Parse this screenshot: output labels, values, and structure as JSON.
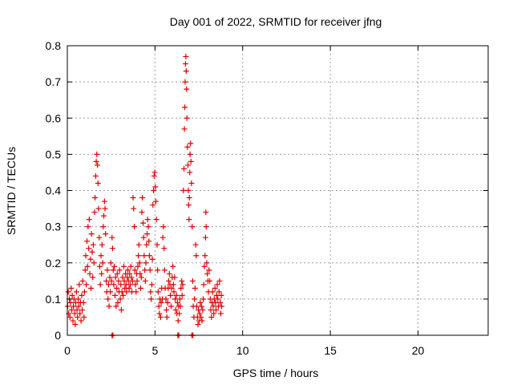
{
  "chart_data": {
    "type": "scatter",
    "title": "Day 001 of 2022, SRMTID for receiver jfng",
    "xlabel": "GPS time / hours",
    "ylabel": "SRMTID / TECUs",
    "xlim": [
      0,
      24
    ],
    "ylim": [
      0,
      0.8
    ],
    "xticks": [
      0,
      5,
      10,
      15,
      20
    ],
    "yticks": [
      0,
      0.1,
      0.2,
      0.3,
      0.4,
      0.5,
      0.6,
      0.7,
      0.8
    ],
    "xtick_labels": [
      "0",
      "5",
      "10",
      "15",
      "20"
    ],
    "ytick_labels": [
      "0",
      "0.1",
      "0.2",
      "0.3",
      "0.4",
      "0.5",
      "0.6",
      "0.7",
      "0.8"
    ],
    "grid": true,
    "marker": "+",
    "series": [
      {
        "name": "SRMTID",
        "color": "#e00000",
        "points": [
          [
            0.02,
            0.08
          ],
          [
            0.05,
            0.12
          ],
          [
            0.08,
            0.06
          ],
          [
            0.12,
            0.1
          ],
          [
            0.15,
            0.05
          ],
          [
            0.18,
            0.09
          ],
          [
            0.22,
            0.13
          ],
          [
            0.25,
            0.07
          ],
          [
            0.28,
            0.11
          ],
          [
            0.32,
            0.04
          ],
          [
            0.35,
            0.08
          ],
          [
            0.38,
            0.1
          ],
          [
            0.42,
            0.06
          ],
          [
            0.45,
            0.03
          ],
          [
            0.48,
            0.09
          ],
          [
            0.52,
            0.12
          ],
          [
            0.55,
            0.07
          ],
          [
            0.58,
            0.05
          ],
          [
            0.62,
            0.1
          ],
          [
            0.65,
            0.08
          ],
          [
            0.68,
            0.14
          ],
          [
            0.72,
            0.06
          ],
          [
            0.75,
            0.09
          ],
          [
            0.78,
            0.04
          ],
          [
            0.82,
            0.11
          ],
          [
            0.85,
            0.07
          ],
          [
            0.88,
            0.15
          ],
          [
            0.92,
            0.09
          ],
          [
            0.95,
            0.05
          ],
          [
            0.98,
            0.12
          ],
          [
            1.02,
            0.18
          ],
          [
            1.05,
            0.22
          ],
          [
            1.08,
            0.14
          ],
          [
            1.12,
            0.26
          ],
          [
            1.15,
            0.19
          ],
          [
            1.18,
            0.3
          ],
          [
            1.22,
            0.24
          ],
          [
            1.25,
            0.32
          ],
          [
            1.28,
            0.17
          ],
          [
            1.32,
            0.21
          ],
          [
            1.35,
            0.13
          ],
          [
            1.38,
            0.28
          ],
          [
            1.42,
            0.23
          ],
          [
            1.45,
            0.16
          ],
          [
            1.48,
            0.25
          ],
          [
            1.52,
            0.2
          ],
          [
            1.55,
            0.34
          ],
          [
            1.58,
            0.38
          ],
          [
            1.62,
            0.44
          ],
          [
            1.65,
            0.48
          ],
          [
            1.68,
            0.5
          ],
          [
            1.72,
            0.47
          ],
          [
            1.75,
            0.42
          ],
          [
            1.78,
            0.35
          ],
          [
            1.82,
            0.27
          ],
          [
            1.85,
            0.19
          ],
          [
            1.88,
            0.14
          ],
          [
            1.92,
            0.22
          ],
          [
            1.95,
            0.17
          ],
          [
            1.98,
            0.25
          ],
          [
            2.02,
            0.2
          ],
          [
            2.05,
            0.3
          ],
          [
            2.08,
            0.33
          ],
          [
            2.12,
            0.37
          ],
          [
            2.15,
            0.35
          ],
          [
            2.18,
            0.28
          ],
          [
            2.22,
            0.15
          ],
          [
            2.25,
            0.12
          ],
          [
            2.28,
            0.18
          ],
          [
            2.32,
            0.1
          ],
          [
            2.35,
            0.14
          ],
          [
            2.38,
            0.08
          ],
          [
            2.42,
            0.16
          ],
          [
            2.45,
            0.12
          ],
          [
            2.48,
            0.2
          ],
          [
            2.52,
            0.15
          ],
          [
            2.55,
            0.27
          ],
          [
            2.58,
            0.24
          ],
          [
            2.62,
            0.18
          ],
          [
            2.65,
            0.14
          ],
          [
            2.68,
            0.19
          ],
          [
            2.72,
            0.11
          ],
          [
            2.75,
            0.16
          ],
          [
            2.78,
            0.08
          ],
          [
            2.82,
            0.13
          ],
          [
            2.85,
            0.17
          ],
          [
            2.88,
            0.09
          ],
          [
            2.92,
            0.15
          ],
          [
            2.95,
            0.12
          ],
          [
            2.98,
            0.18
          ],
          [
            3.02,
            0.1
          ],
          [
            3.05,
            0.14
          ],
          [
            3.08,
            0.07
          ],
          [
            3.12,
            0.12
          ],
          [
            3.15,
            0.16
          ],
          [
            3.18,
            0.11
          ],
          [
            3.22,
            0.19
          ],
          [
            3.25,
            0.15
          ],
          [
            3.28,
            0.13
          ],
          [
            3.32,
            0.17
          ],
          [
            3.35,
            0.14
          ],
          [
            3.38,
            0.12
          ],
          [
            3.42,
            0.16
          ],
          [
            3.45,
            0.18
          ],
          [
            3.48,
            0.15
          ],
          [
            3.52,
            0.13
          ],
          [
            3.55,
            0.17
          ],
          [
            3.58,
            0.14
          ],
          [
            3.62,
            0.19
          ],
          [
            3.65,
            0.16
          ],
          [
            3.68,
            0.12
          ],
          [
            3.72,
            0.15
          ],
          [
            3.75,
            0.38
          ],
          [
            3.78,
            0.35
          ],
          [
            3.82,
            0.3
          ],
          [
            3.85,
            0.18
          ],
          [
            3.88,
            0.14
          ],
          [
            3.92,
            0.12
          ],
          [
            3.95,
            0.17
          ],
          [
            3.98,
            0.15
          ],
          [
            4.02,
            0.19
          ],
          [
            4.05,
            0.22
          ],
          [
            4.08,
            0.25
          ],
          [
            4.12,
            0.2
          ],
          [
            4.15,
            0.17
          ],
          [
            4.18,
            0.13
          ],
          [
            4.22,
            0.16
          ],
          [
            4.25,
            0.34
          ],
          [
            4.28,
            0.38
          ],
          [
            4.32,
            0.31
          ],
          [
            4.35,
            0.27
          ],
          [
            4.38,
            0.22
          ],
          [
            4.42,
            0.18
          ],
          [
            4.45,
            0.15
          ],
          [
            4.48,
            0.2
          ],
          [
            4.52,
            0.25
          ],
          [
            4.55,
            0.28
          ],
          [
            4.58,
            0.32
          ],
          [
            4.62,
            0.3
          ],
          [
            4.65,
            0.26
          ],
          [
            4.68,
            0.22
          ],
          [
            4.72,
            0.18
          ],
          [
            4.75,
            0.12
          ],
          [
            4.78,
            0.1
          ],
          [
            4.82,
            0.14
          ],
          [
            4.85,
            0.21
          ],
          [
            4.88,
            0.36
          ],
          [
            4.92,
            0.4
          ],
          [
            4.95,
            0.44
          ],
          [
            4.98,
            0.45
          ],
          [
            5.02,
            0.41
          ],
          [
            5.05,
            0.37
          ],
          [
            5.08,
            0.32
          ],
          [
            5.12,
            0.25
          ],
          [
            5.15,
            0.18
          ],
          [
            5.18,
            0.12
          ],
          [
            5.22,
            0.08
          ],
          [
            5.25,
            0.06
          ],
          [
            5.28,
            0.1
          ],
          [
            5.32,
            0.05
          ],
          [
            5.35,
            0.09
          ],
          [
            5.38,
            0.13
          ],
          [
            5.42,
            0.1
          ],
          [
            5.45,
            0.27
          ],
          [
            5.48,
            0.3
          ],
          [
            5.52,
            0.24
          ],
          [
            5.55,
            0.18
          ],
          [
            5.58,
            0.13
          ],
          [
            5.62,
            0.1
          ],
          [
            5.65,
            0.07
          ],
          [
            5.68,
            0.05
          ],
          [
            5.72,
            0.09
          ],
          [
            5.75,
            0.13
          ],
          [
            5.78,
            0.15
          ],
          [
            5.82,
            0.17
          ],
          [
            5.85,
            0.14
          ],
          [
            5.88,
            0.11
          ],
          [
            5.92,
            0.08
          ],
          [
            5.95,
            0.13
          ],
          [
            5.98,
            0.16
          ],
          [
            6.02,
            0.19
          ],
          [
            6.05,
            0.14
          ],
          [
            6.08,
            0.12
          ],
          [
            6.12,
            0.16
          ],
          [
            6.15,
            0.1
          ],
          [
            6.18,
            0.07
          ],
          [
            6.22,
            0.11
          ],
          [
            6.25,
            0.06
          ],
          [
            6.28,
            0.09
          ],
          [
            6.32,
            0.04
          ],
          [
            6.35,
            0.08
          ],
          [
            6.38,
            0.06
          ],
          [
            6.42,
            0.1
          ],
          [
            6.45,
            0.08
          ],
          [
            6.48,
            0.13
          ],
          [
            6.52,
            0.15
          ],
          [
            6.55,
            0.11
          ],
          [
            6.58,
            0.14
          ],
          [
            6.62,
            0.4
          ],
          [
            6.65,
            0.46
          ],
          [
            6.68,
            0.57
          ],
          [
            6.7,
            0.63
          ],
          [
            6.72,
            0.7
          ],
          [
            6.74,
            0.75
          ],
          [
            6.76,
            0.77
          ],
          [
            6.78,
            0.73
          ],
          [
            6.8,
            0.68
          ],
          [
            6.82,
            0.6
          ],
          [
            6.85,
            0.52
          ],
          [
            6.88,
            0.47
          ],
          [
            6.9,
            0.4
          ],
          [
            6.92,
            0.36
          ],
          [
            6.94,
            0.32
          ],
          [
            6.96,
            0.38
          ],
          [
            6.98,
            0.45
          ],
          [
            7.0,
            0.5
          ],
          [
            7.02,
            0.53
          ],
          [
            7.05,
            0.48
          ],
          [
            7.08,
            0.42
          ],
          [
            7.12,
            0.3
          ],
          [
            7.15,
            0.15
          ],
          [
            7.18,
            0.08
          ],
          [
            7.22,
            0.05
          ],
          [
            7.25,
            0.1
          ],
          [
            7.28,
            0.13
          ],
          [
            7.32,
            0.25
          ],
          [
            7.35,
            0.22
          ],
          [
            7.38,
            0.08
          ],
          [
            7.42,
            0.05
          ],
          [
            7.45,
            0.03
          ],
          [
            7.48,
            0.07
          ],
          [
            7.52,
            0.04
          ],
          [
            7.55,
            0.06
          ],
          [
            7.58,
            0.09
          ],
          [
            7.62,
            0.05
          ],
          [
            7.65,
            0.08
          ],
          [
            7.68,
            0.04
          ],
          [
            7.72,
            0.07
          ],
          [
            7.75,
            0.1
          ],
          [
            7.78,
            0.14
          ],
          [
            7.82,
            0.19
          ],
          [
            7.85,
            0.22
          ],
          [
            7.88,
            0.27
          ],
          [
            7.9,
            0.34
          ],
          [
            7.92,
            0.3
          ],
          [
            7.95,
            0.2
          ],
          [
            7.98,
            0.17
          ],
          [
            8.02,
            0.15
          ],
          [
            8.05,
            0.12
          ],
          [
            8.08,
            0.18
          ],
          [
            8.12,
            0.15
          ],
          [
            8.15,
            0.1
          ],
          [
            8.18,
            0.07
          ],
          [
            8.22,
            0.05
          ],
          [
            8.25,
            0.09
          ],
          [
            8.28,
            0.12
          ],
          [
            8.32,
            0.08
          ],
          [
            8.35,
            0.06
          ],
          [
            8.38,
            0.1
          ],
          [
            8.42,
            0.13
          ],
          [
            8.45,
            0.09
          ],
          [
            8.48,
            0.07
          ],
          [
            8.52,
            0.11
          ],
          [
            8.55,
            0.14
          ],
          [
            8.58,
            0.1
          ],
          [
            8.62,
            0.08
          ],
          [
            8.65,
            0.12
          ],
          [
            8.68,
            0.15
          ],
          [
            8.72,
            0.09
          ],
          [
            8.75,
            0.06
          ],
          [
            8.78,
            0.11
          ],
          [
            8.8,
            0.08
          ],
          [
            2.55,
            0.0
          ],
          [
            2.6,
            0.0
          ],
          [
            6.3,
            0.0
          ],
          [
            6.36,
            0.0
          ],
          [
            7.1,
            0.0
          ],
          [
            7.16,
            0.0
          ]
        ]
      }
    ]
  }
}
